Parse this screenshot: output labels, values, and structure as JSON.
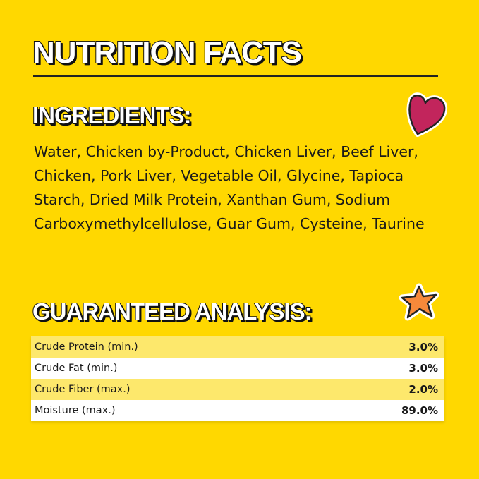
{
  "title": "NUTRITION FACTS",
  "ingredients": {
    "heading": "INGREDIENTS:",
    "text": "Water, Chicken by-Product, Chicken Liver, Beef Liver, Chicken, Pork Liver, Vegetable Oil, Glycine, Tapioca Starch, Dried Milk Protein, Xanthan Gum, Sodium Carboxymethylcellulose, Guar Gum, Cysteine, Taurine"
  },
  "analysis": {
    "heading": "GUARANTEED ANALYSIS:",
    "rows": [
      {
        "label": "Crude Protein (min.)",
        "value": "3.0%"
      },
      {
        "label": "Crude Fat (min.)",
        "value": "3.0%"
      },
      {
        "label": "Crude Fiber (max.)",
        "value": "2.0%"
      },
      {
        "label": "Moisture (max.)",
        "value": "89.0%"
      }
    ]
  },
  "colors": {
    "background": "#FFD800",
    "heart": "#C2255C",
    "star": "#F7893A",
    "row_highlight": "#FDE86C"
  },
  "icons": [
    "heart-icon",
    "star-icon"
  ]
}
